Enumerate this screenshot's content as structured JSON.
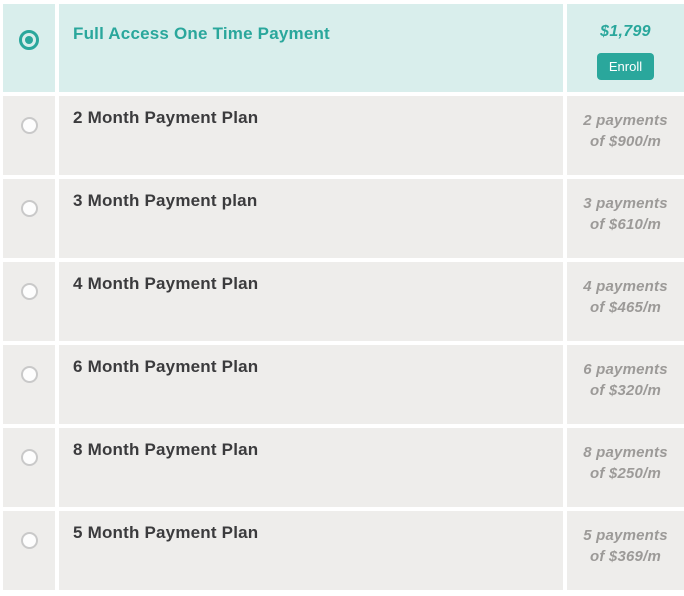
{
  "colors": {
    "accent_teal": "#2aa79c",
    "selected_row_bg": "#d9eeec",
    "row_bg": "#eeedeb",
    "title_text": "#3b3b3d",
    "muted_text": "#9c9a98",
    "radio_border": "#c9c9c9",
    "enroll_button_text": "#ffffff"
  },
  "plans": [
    {
      "title": "Full Access One Time Payment",
      "price": "$1,799",
      "enroll_label": "Enroll",
      "selected": true
    },
    {
      "title": "2 Month Payment Plan",
      "payments_line1": "2 payments",
      "payments_line2": "of $900/m",
      "selected": false
    },
    {
      "title": "3 Month Payment plan",
      "payments_line1": "3 payments",
      "payments_line2": "of $610/m",
      "selected": false
    },
    {
      "title": "4 Month Payment Plan",
      "payments_line1": "4 payments",
      "payments_line2": "of $465/m",
      "selected": false
    },
    {
      "title": "6 Month Payment Plan",
      "payments_line1": "6 payments",
      "payments_line2": "of $320/m",
      "selected": false
    },
    {
      "title": "8 Month Payment Plan",
      "payments_line1": "8 payments",
      "payments_line2": "of $250/m",
      "selected": false
    },
    {
      "title": "5 Month Payment Plan",
      "payments_line1": "5 payments",
      "payments_line2": "of $369/m",
      "selected": false
    }
  ]
}
